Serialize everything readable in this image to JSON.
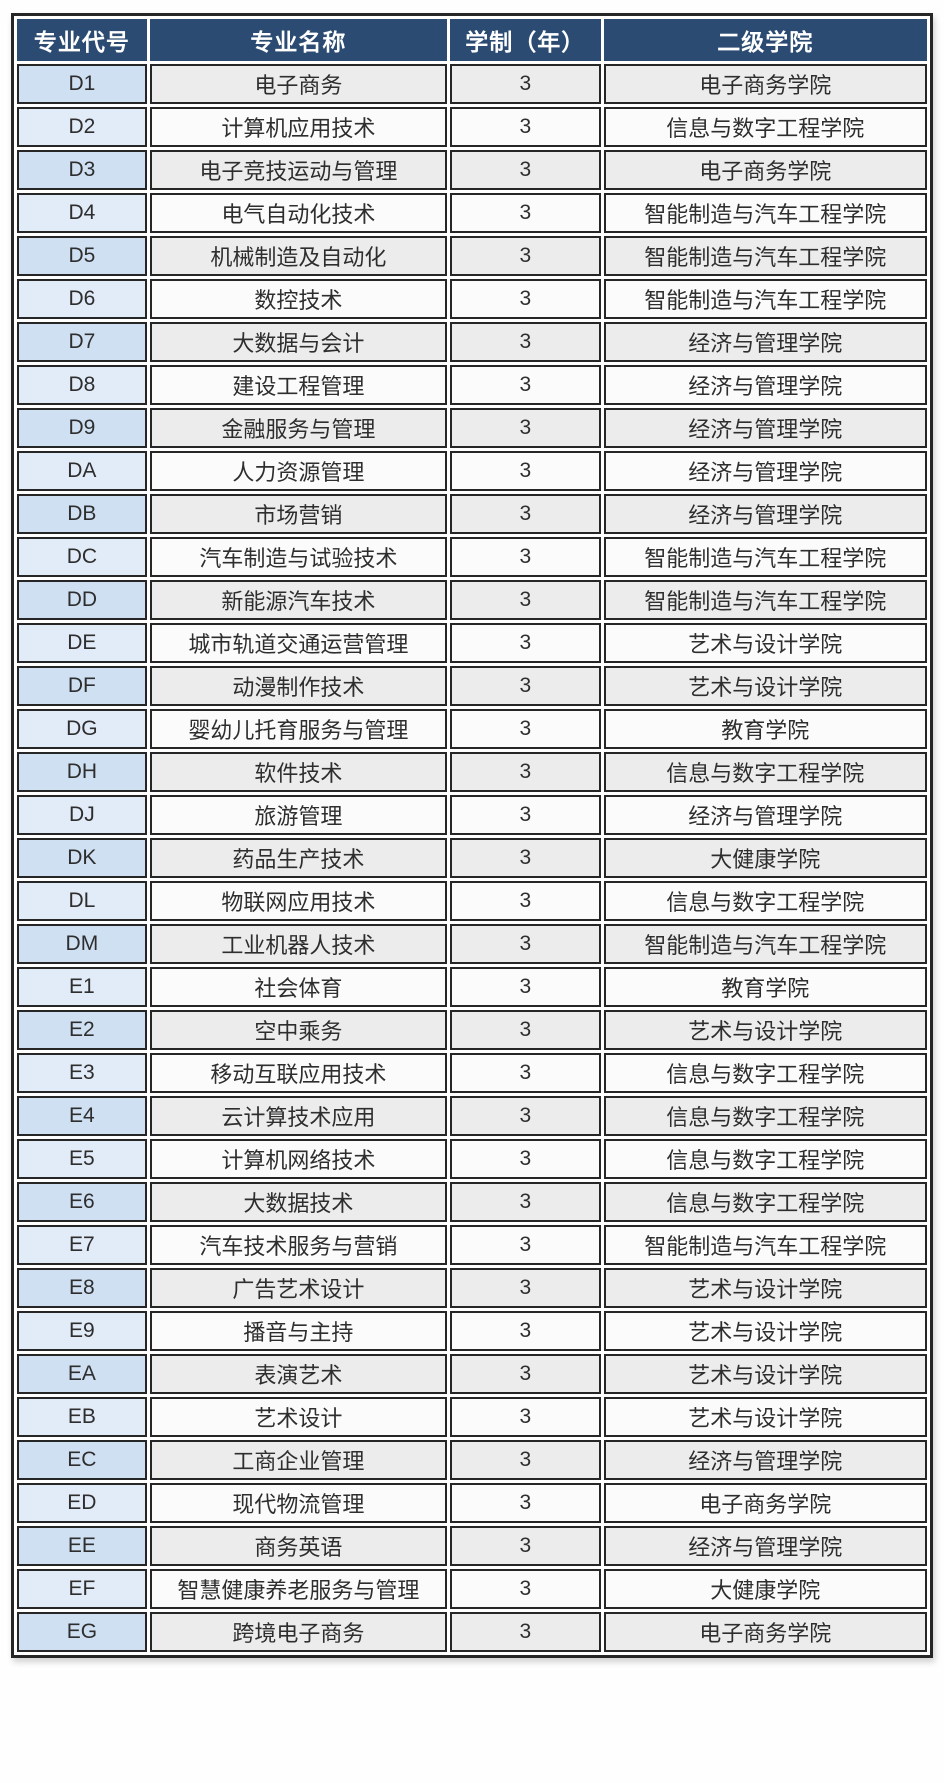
{
  "theme": {
    "header_bg": "#2c4b73",
    "header_text": "#ffffff",
    "border_color": "#262626",
    "row_odd_bg": "#ececec",
    "row_even_bg": "#fbfbfb",
    "code_odd_bg": "#cfe0f3",
    "code_even_bg": "#e2ebf8",
    "text_color": "#2e2e2e"
  },
  "table": {
    "columns": [
      {
        "key": "code",
        "label": "专业代号"
      },
      {
        "key": "name",
        "label": "专业名称"
      },
      {
        "key": "years",
        "label": "学制（年）"
      },
      {
        "key": "college",
        "label": "二级学院"
      }
    ],
    "rows": [
      {
        "code": "D1",
        "name": "电子商务",
        "years": "3",
        "college": "电子商务学院"
      },
      {
        "code": "D2",
        "name": "计算机应用技术",
        "years": "3",
        "college": "信息与数字工程学院"
      },
      {
        "code": "D3",
        "name": "电子竞技运动与管理",
        "years": "3",
        "college": "电子商务学院"
      },
      {
        "code": "D4",
        "name": "电气自动化技术",
        "years": "3",
        "college": "智能制造与汽车工程学院"
      },
      {
        "code": "D5",
        "name": "机械制造及自动化",
        "years": "3",
        "college": "智能制造与汽车工程学院"
      },
      {
        "code": "D6",
        "name": "数控技术",
        "years": "3",
        "college": "智能制造与汽车工程学院"
      },
      {
        "code": "D7",
        "name": "大数据与会计",
        "years": "3",
        "college": "经济与管理学院"
      },
      {
        "code": "D8",
        "name": "建设工程管理",
        "years": "3",
        "college": "经济与管理学院"
      },
      {
        "code": "D9",
        "name": "金融服务与管理",
        "years": "3",
        "college": "经济与管理学院"
      },
      {
        "code": "DA",
        "name": "人力资源管理",
        "years": "3",
        "college": "经济与管理学院"
      },
      {
        "code": "DB",
        "name": "市场营销",
        "years": "3",
        "college": "经济与管理学院"
      },
      {
        "code": "DC",
        "name": "汽车制造与试验技术",
        "years": "3",
        "college": "智能制造与汽车工程学院"
      },
      {
        "code": "DD",
        "name": "新能源汽车技术",
        "years": "3",
        "college": "智能制造与汽车工程学院"
      },
      {
        "code": "DE",
        "name": "城市轨道交通运营管理",
        "years": "3",
        "college": "艺术与设计学院"
      },
      {
        "code": "DF",
        "name": "动漫制作技术",
        "years": "3",
        "college": "艺术与设计学院"
      },
      {
        "code": "DG",
        "name": "婴幼儿托育服务与管理",
        "years": "3",
        "college": "教育学院"
      },
      {
        "code": "DH",
        "name": "软件技术",
        "years": "3",
        "college": "信息与数字工程学院"
      },
      {
        "code": "DJ",
        "name": "旅游管理",
        "years": "3",
        "college": "经济与管理学院"
      },
      {
        "code": "DK",
        "name": "药品生产技术",
        "years": "3",
        "college": "大健康学院"
      },
      {
        "code": "DL",
        "name": "物联网应用技术",
        "years": "3",
        "college": "信息与数字工程学院"
      },
      {
        "code": "DM",
        "name": "工业机器人技术",
        "years": "3",
        "college": "智能制造与汽车工程学院"
      },
      {
        "code": "E1",
        "name": "社会体育",
        "years": "3",
        "college": "教育学院"
      },
      {
        "code": "E2",
        "name": "空中乘务",
        "years": "3",
        "college": "艺术与设计学院"
      },
      {
        "code": "E3",
        "name": "移动互联应用技术",
        "years": "3",
        "college": "信息与数字工程学院"
      },
      {
        "code": "E4",
        "name": "云计算技术应用",
        "years": "3",
        "college": "信息与数字工程学院"
      },
      {
        "code": "E5",
        "name": "计算机网络技术",
        "years": "3",
        "college": "信息与数字工程学院"
      },
      {
        "code": "E6",
        "name": "大数据技术",
        "years": "3",
        "college": "信息与数字工程学院"
      },
      {
        "code": "E7",
        "name": "汽车技术服务与营销",
        "years": "3",
        "college": "智能制造与汽车工程学院"
      },
      {
        "code": "E8",
        "name": "广告艺术设计",
        "years": "3",
        "college": "艺术与设计学院"
      },
      {
        "code": "E9",
        "name": "播音与主持",
        "years": "3",
        "college": "艺术与设计学院"
      },
      {
        "code": "EA",
        "name": "表演艺术",
        "years": "3",
        "college": "艺术与设计学院"
      },
      {
        "code": "EB",
        "name": "艺术设计",
        "years": "3",
        "college": "艺术与设计学院"
      },
      {
        "code": "EC",
        "name": "工商企业管理",
        "years": "3",
        "college": "经济与管理学院"
      },
      {
        "code": "ED",
        "name": "现代物流管理",
        "years": "3",
        "college": "电子商务学院"
      },
      {
        "code": "EE",
        "name": "商务英语",
        "years": "3",
        "college": "经济与管理学院"
      },
      {
        "code": "EF",
        "name": "智慧健康养老服务与管理",
        "years": "3",
        "college": "大健康学院"
      },
      {
        "code": "EG",
        "name": "跨境电子商务",
        "years": "3",
        "college": "电子商务学院"
      }
    ]
  }
}
